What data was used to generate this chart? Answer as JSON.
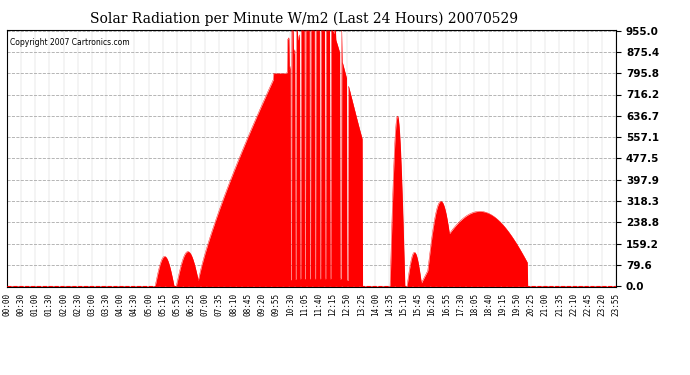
{
  "title": "Solar Radiation per Minute W/m2 (Last 24 Hours) 20070529",
  "copyright_text": "Copyright 2007 Cartronics.com",
  "bar_color": "#FF0000",
  "background_color": "#FFFFFF",
  "grid_color": "#AAAAAA",
  "yticks": [
    0.0,
    79.6,
    159.2,
    238.8,
    318.3,
    397.9,
    477.5,
    557.1,
    636.7,
    716.2,
    795.8,
    875.4,
    955.0
  ],
  "ymax": 955.0,
  "ymin": 0.0,
  "xtick_labels": [
    "00:00",
    "00:30",
    "01:00",
    "01:30",
    "02:00",
    "02:30",
    "03:00",
    "03:30",
    "04:00",
    "04:30",
    "05:00",
    "05:15",
    "05:50",
    "06:25",
    "07:00",
    "07:35",
    "08:10",
    "08:45",
    "09:20",
    "09:55",
    "10:30",
    "11:05",
    "11:40",
    "12:15",
    "12:50",
    "13:25",
    "14:00",
    "14:35",
    "15:10",
    "15:45",
    "16:20",
    "16:55",
    "17:30",
    "18:05",
    "18:40",
    "19:15",
    "19:50",
    "20:25",
    "21:00",
    "21:35",
    "22:10",
    "22:45",
    "23:20",
    "23:55"
  ]
}
